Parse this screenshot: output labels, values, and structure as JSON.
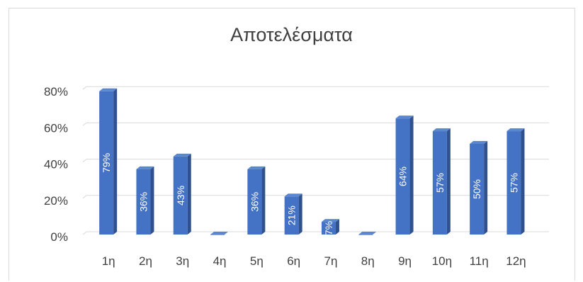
{
  "chart_data": {
    "type": "bar",
    "title": "Αποτελέσματα",
    "categories": [
      "1η",
      "2η",
      "3η",
      "4η",
      "5η",
      "6η",
      "7η",
      "8η",
      "9η",
      "10η",
      "11η",
      "12η"
    ],
    "values": [
      79,
      36,
      43,
      0,
      36,
      21,
      7,
      0,
      64,
      57,
      50,
      57
    ],
    "data_labels": [
      "79%",
      "36%",
      "43%",
      "",
      "36%",
      "21%",
      "7%",
      "",
      "64%",
      "57%",
      "50%",
      "57%"
    ],
    "y_ticks": [
      "0%",
      "20%",
      "40%",
      "60%",
      "80%"
    ],
    "ylim": [
      0,
      80
    ],
    "grid": true,
    "legend": "none",
    "style": "3d-column",
    "colors": {
      "front": "#4472c4",
      "side": "#2f528f",
      "top": "#5b86d0",
      "grid": "#d9d9d9",
      "text": "#404040"
    }
  }
}
